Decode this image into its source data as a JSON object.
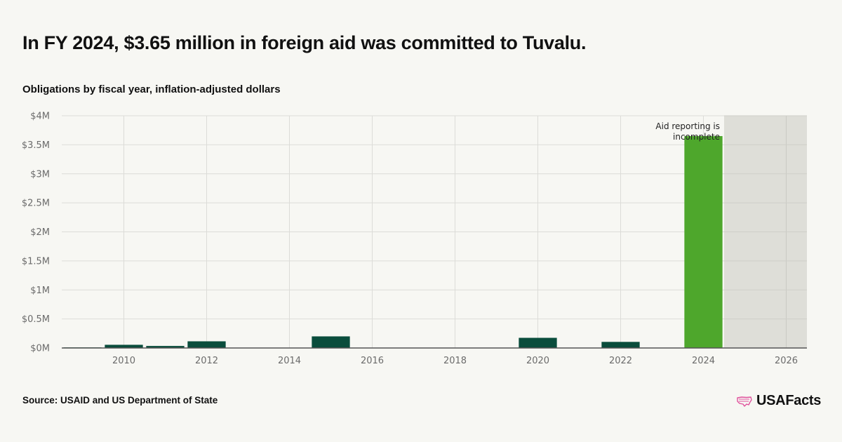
{
  "page": {
    "title": "In FY 2024, $3.65 million in foreign aid was committed to Tuvalu.",
    "subtitle": "Obligations by fiscal year, inflation-adjusted dollars",
    "source": "Source: USAID and US Department of State",
    "brand": "USAFacts",
    "brand_icon": "us-map-icon"
  },
  "colors": {
    "background": "#f7f7f3",
    "bar": "#0a4d3c",
    "highlight_bar": "#4ea72c",
    "incomplete_shade": "#deded8",
    "gridline": "#dcdcd8",
    "axis": "#555555",
    "brand_icon": "#e0529c"
  },
  "chart_data": {
    "type": "bar",
    "title": "",
    "xlabel": "",
    "ylabel": "",
    "x": [
      2009,
      2010,
      2011,
      2012,
      2013,
      2014,
      2015,
      2016,
      2017,
      2018,
      2019,
      2020,
      2021,
      2022,
      2023,
      2024
    ],
    "values": [
      10000,
      55000,
      35000,
      115000,
      0,
      0,
      200000,
      0,
      0,
      0,
      0,
      175000,
      0,
      105000,
      0,
      3650000
    ],
    "highlight": 2024,
    "xlim": [
      2008.5,
      2026.5
    ],
    "ylim": [
      0,
      4000000
    ],
    "xticks": [
      2010,
      2012,
      2014,
      2016,
      2018,
      2020,
      2022,
      2024,
      2026
    ],
    "xtick_labels": [
      "2010",
      "2012",
      "2014",
      "2016",
      "2018",
      "2020",
      "2022",
      "2024",
      "2026"
    ],
    "yticks": [
      0,
      500000,
      1000000,
      1500000,
      2000000,
      2500000,
      3000000,
      3500000,
      4000000
    ],
    "ytick_labels": [
      "$0M",
      "$0.5M",
      "$1M",
      "$1.5M",
      "$2M",
      "$2.5M",
      "$3M",
      "$3.5M",
      "$4M"
    ],
    "shaded_region": {
      "from": 2024.5,
      "to": 2026.5
    },
    "annotation": {
      "lines": [
        "Aid reporting is",
        "incomplete"
      ]
    },
    "grid": true,
    "legend": "none"
  }
}
